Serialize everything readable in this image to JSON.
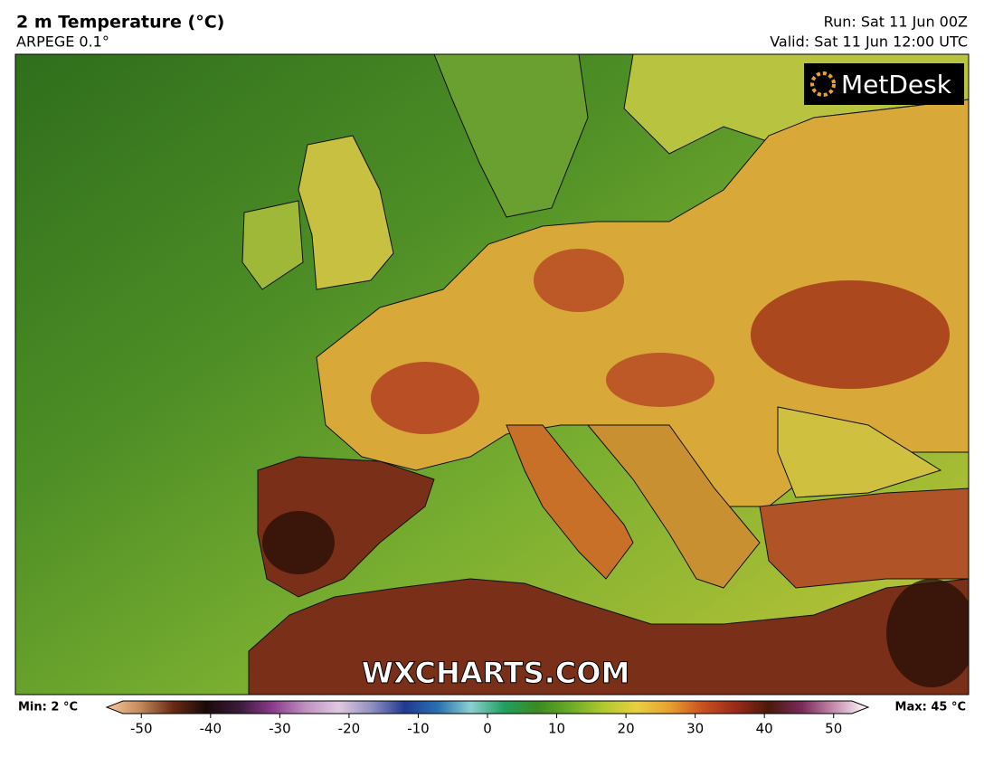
{
  "header": {
    "title": "2 m Temperature (°C)",
    "subtitle": "ARPEGE 0.1°",
    "run": "Run: Sat 11 Jun 00Z",
    "valid": "Valid: Sat 11 Jun 12:00 UTC"
  },
  "map": {
    "logo": "MetDesk",
    "watermark": "WXCHARTS.COM"
  },
  "legend": {
    "min_label": "Min: 2 °C",
    "max_label": "Max: 45 °C",
    "lim": [
      -55,
      55
    ],
    "ticks": [
      -50,
      -40,
      -30,
      -20,
      -10,
      0,
      10,
      20,
      30,
      40,
      50
    ],
    "colors": [
      "#f6c9a0",
      "#c48a5c",
      "#6a2a14",
      "#1a0a0a",
      "#3a1a3a",
      "#8a3a8a",
      "#c090c0",
      "#e0c8e0",
      "#9090c0",
      "#203a90",
      "#2a70b0",
      "#8ad0d0",
      "#20a060",
      "#3a8a20",
      "#6aaa28",
      "#b0c830",
      "#e8d040",
      "#e8a030",
      "#c85020",
      "#9a2a18",
      "#4a1a0a",
      "#7a2a5a",
      "#c890b0",
      "#ffffff"
    ]
  }
}
